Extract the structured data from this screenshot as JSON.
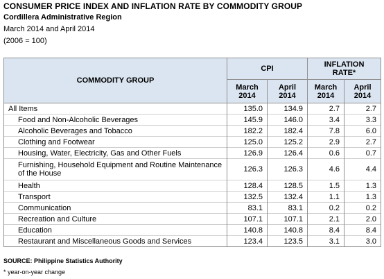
{
  "header": {
    "title": "CONSUMER PRICE INDEX AND INFLATION RATE BY COMMODITY GROUP",
    "region": "Cordillera Administrative Region",
    "period": "March 2014 and April 2014",
    "base": "(2006 = 100)"
  },
  "table": {
    "group_header": "COMMODITY GROUP",
    "cpi_header": "CPI",
    "inflation_header": "INFLATION RATE*",
    "subheaders": [
      "March 2014",
      "April 2014",
      "March 2014",
      "April 2014"
    ],
    "rows": [
      {
        "name": "All Items",
        "cpi_mar": "135.0",
        "cpi_apr": "134.9",
        "inf_mar": "2.7",
        "inf_apr": "2.7"
      },
      {
        "name": "Food and Non-Alcoholic Beverages",
        "cpi_mar": "145.9",
        "cpi_apr": "146.0",
        "inf_mar": "3.4",
        "inf_apr": "3.3"
      },
      {
        "name": "Alcoholic Beverages and Tobacco",
        "cpi_mar": "182.2",
        "cpi_apr": "182.4",
        "inf_mar": "7.8",
        "inf_apr": "6.0"
      },
      {
        "name": "Clothing and Footwear",
        "cpi_mar": "125.0",
        "cpi_apr": "125.2",
        "inf_mar": "2.9",
        "inf_apr": "2.7"
      },
      {
        "name": "Housing, Water, Electricity, Gas and Other Fuels",
        "cpi_mar": "126.9",
        "cpi_apr": "126.4",
        "inf_mar": "0.6",
        "inf_apr": "0.7"
      },
      {
        "name": "Furnishing, Household Equipment and Routine Maintenance of the House",
        "cpi_mar": "126.3",
        "cpi_apr": "126.3",
        "inf_mar": "4.6",
        "inf_apr": "4.4"
      },
      {
        "name": "Health",
        "cpi_mar": "128.4",
        "cpi_apr": "128.5",
        "inf_mar": "1.5",
        "inf_apr": "1.3"
      },
      {
        "name": "Transport",
        "cpi_mar": "132.5",
        "cpi_apr": "132.4",
        "inf_mar": "1.1",
        "inf_apr": "1.3"
      },
      {
        "name": "Communication",
        "cpi_mar": "83.1",
        "cpi_apr": "83.1",
        "inf_mar": "0.2",
        "inf_apr": "0.2"
      },
      {
        "name": "Recreation and Culture",
        "cpi_mar": "107.1",
        "cpi_apr": "107.1",
        "inf_mar": "2.1",
        "inf_apr": "2.0"
      },
      {
        "name": "Education",
        "cpi_mar": "140.8",
        "cpi_apr": "140.8",
        "inf_mar": "8.4",
        "inf_apr": "8.4"
      },
      {
        "name": "Restaurant and Miscellaneous Goods and Services",
        "cpi_mar": "123.4",
        "cpi_apr": "123.5",
        "inf_mar": "3.1",
        "inf_apr": "3.0"
      }
    ]
  },
  "footer": {
    "source": "SOURCE: Philippine Statistics Authority",
    "note": "* year-on-year change"
  },
  "colors": {
    "header_fill": "#dbe5f1",
    "border": "#8e8e8e"
  }
}
